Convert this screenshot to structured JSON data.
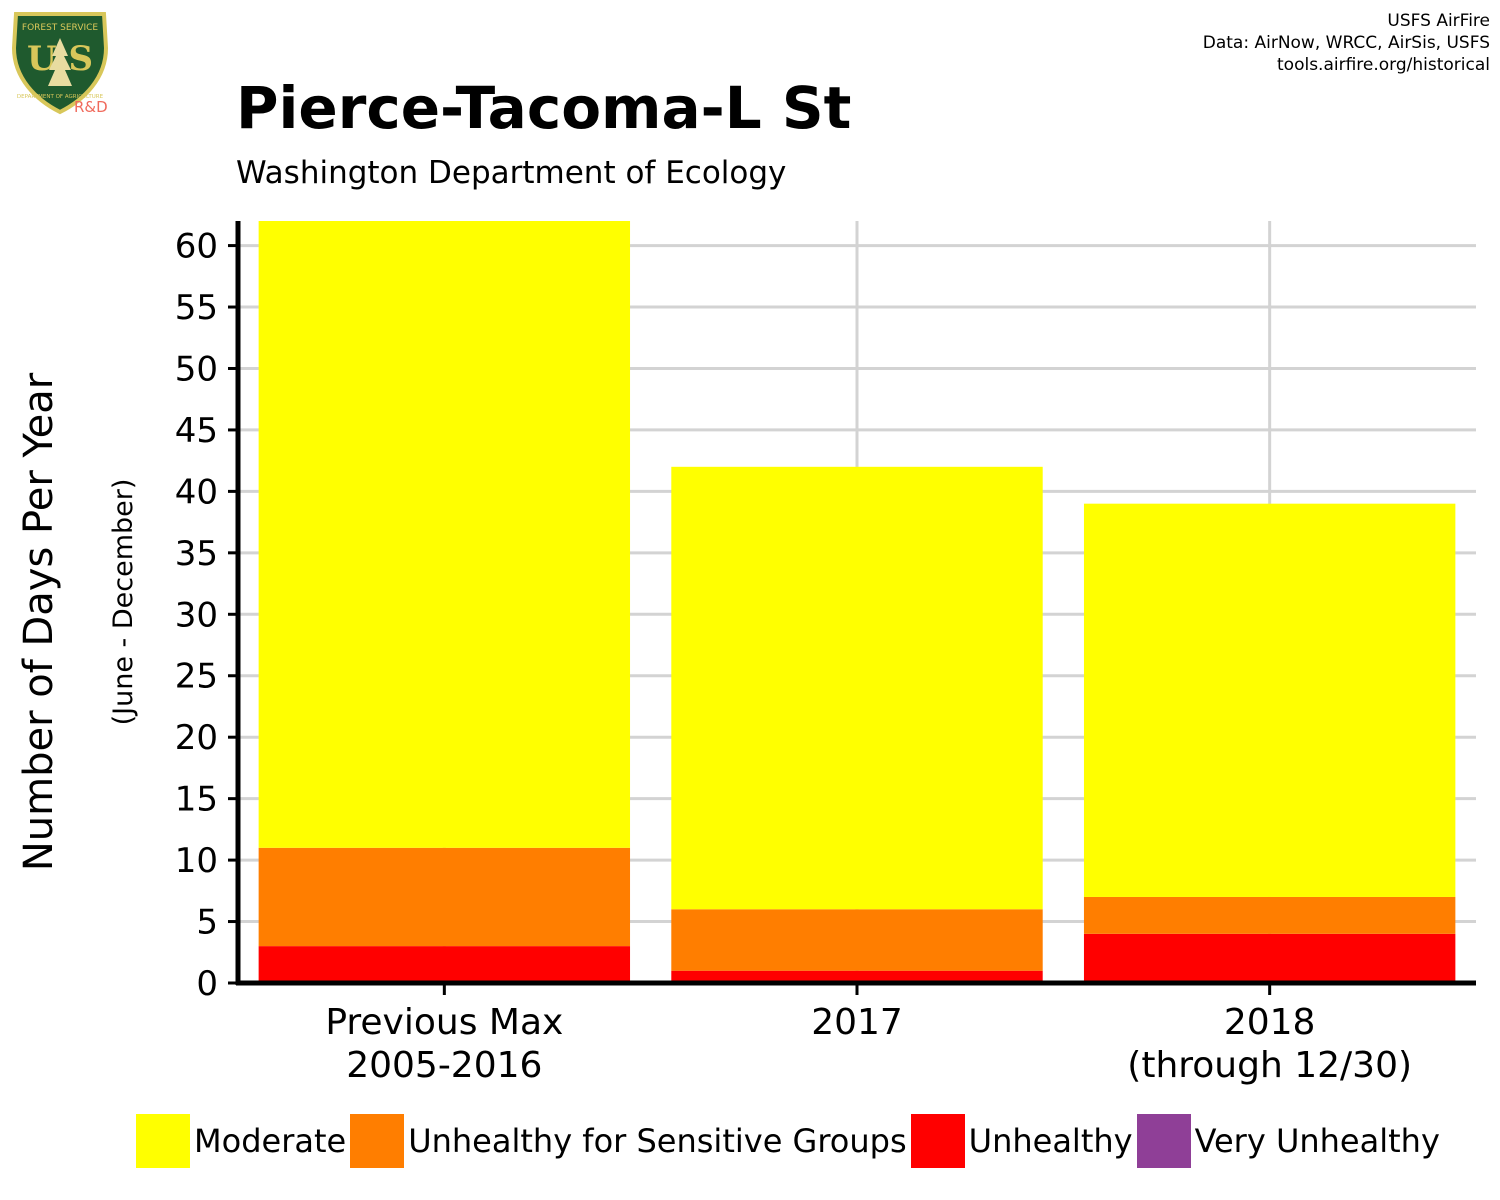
{
  "logo": {
    "agency_text": "FOREST SERVICE",
    "letters": "U S",
    "department_text": "DEPARTMENT OF AGRICULTURE",
    "badge_label": "R&D",
    "colors": {
      "shield": "#1f5a2e",
      "border": "#d8c75a",
      "label": "#f06b5d"
    }
  },
  "credits": {
    "line1": "USFS AirFire",
    "line2": "Data: AirNow, WRCC, AirSis, USFS",
    "line3": "tools.airfire.org/historical"
  },
  "chart_data": {
    "type": "bar",
    "stacked": true,
    "title": "Pierce-Tacoma-L St",
    "subtitle": "Washington Department of Ecology",
    "ylabel": "Number of Days Per Year",
    "ylabel_sub": "(June - December)",
    "xlabel": "",
    "categories": [
      "Previous Max\n2005-2016",
      "2017",
      "2018\n(through 12/30)"
    ],
    "ylim": [
      0,
      62
    ],
    "yticks": [
      0,
      5,
      10,
      15,
      20,
      25,
      30,
      35,
      40,
      45,
      50,
      55,
      60
    ],
    "grid": true,
    "legend_position": "bottom",
    "series": [
      {
        "name": "Unhealthy",
        "color": "#ff0000",
        "values": [
          3,
          1,
          4
        ]
      },
      {
        "name": "Unhealthy for Sensitive Groups",
        "color": "#ff7e00",
        "values": [
          8,
          5,
          3
        ]
      },
      {
        "name": "Moderate",
        "color": "#ffff00",
        "values": [
          51,
          36,
          32
        ]
      },
      {
        "name": "Very Unhealthy",
        "color": "#8f3f97",
        "values": [
          0,
          0,
          0
        ]
      }
    ],
    "legend": [
      {
        "label": "Moderate",
        "color": "#ffff00"
      },
      {
        "label": "Unhealthy for Sensitive Groups",
        "color": "#ff7e00"
      },
      {
        "label": "Unhealthy",
        "color": "#ff0000"
      },
      {
        "label": "Very Unhealthy",
        "color": "#8f3f97"
      }
    ]
  }
}
